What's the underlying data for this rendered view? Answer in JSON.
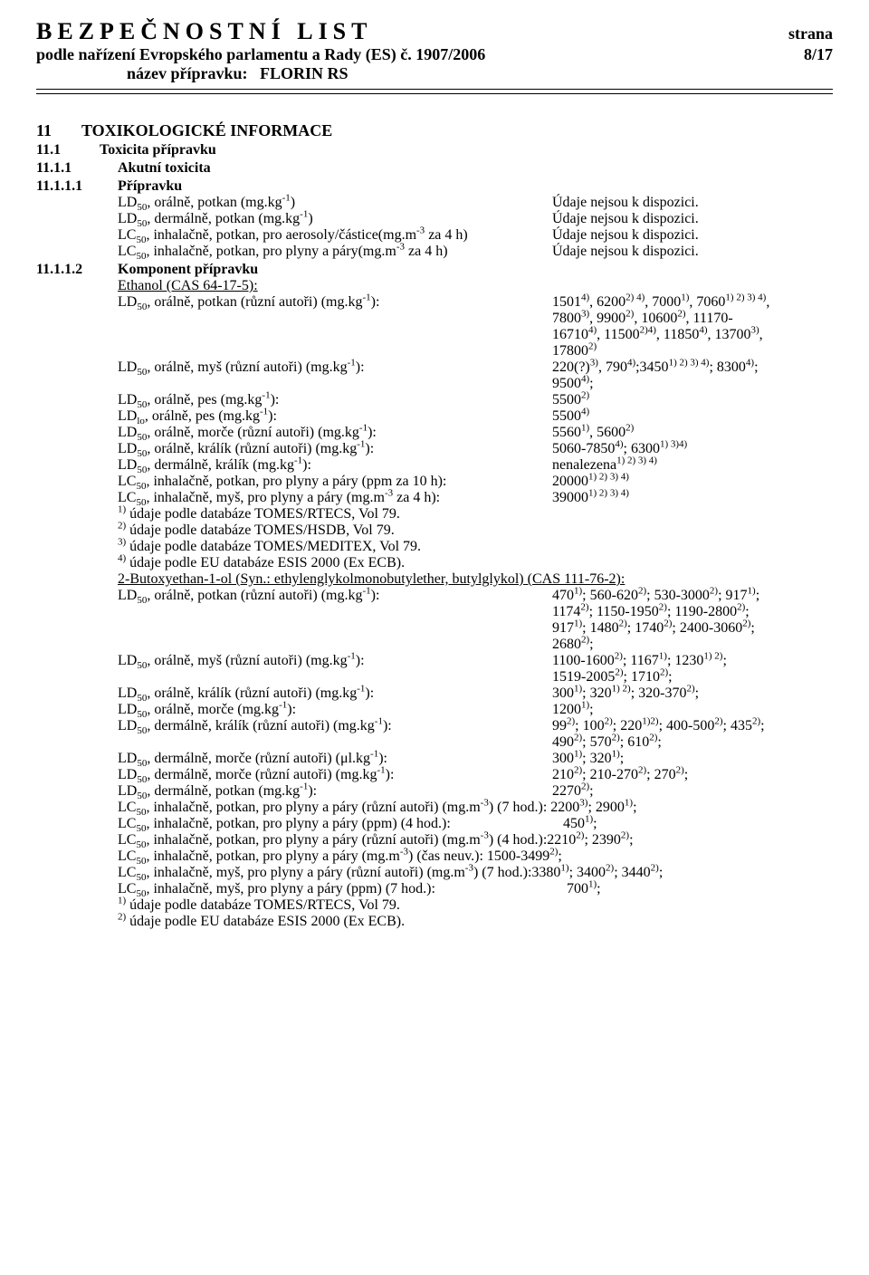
{
  "header": {
    "title": "BEZPEČNOSTNÍ LIST",
    "strana_label": "strana",
    "subtitle": "podle nařízení Evropského parlamentu a Rady (ES) č. 1907/2006",
    "page": "8/17",
    "prep_label": "název přípravku:",
    "prep_name": "FLORIN RS"
  },
  "s11": {
    "num": "11",
    "title": "TOXIKOLOGICKÉ INFORMACE"
  },
  "s11_1": {
    "num": "11.1",
    "title": "Toxicita přípravku"
  },
  "s11_1_1": {
    "num": "11.1.1",
    "title": "Akutní toxicita"
  },
  "s11_1_1_1": {
    "num": "11.1.1.1",
    "title": "Přípravku"
  },
  "prep": {
    "l1k": "LD",
    "l1k2": ", orálně, potkan (mg.kg",
    "l1v": "Údaje nejsou k dispozici.",
    "l2k": "LD",
    "l2k2": ", dermálně, potkan (mg.kg",
    "l2v": "Údaje nejsou k dispozici.",
    "l3k": "LC",
    "l3k2": ", inhalačně, potkan, pro aerosoly/částice(mg.m",
    "l3k3": " za 4 h)",
    "l3v": "Údaje nejsou k dispozici.",
    "l4k": "LC",
    "l4k2": ", inhalačně, potkan, pro plyny a páry(mg.m",
    "l4k3": " za 4 h)",
    "l4v": "Údaje nejsou k dispozici."
  },
  "s11_1_1_2": {
    "num": "11.1.1.2",
    "title": "Komponent přípravku"
  },
  "eth": {
    "heading": "Ethanol (CAS 64-17-5):",
    "l1a": ", orálně, potkan (různí autoři) (mg.kg",
    "l1v1": "1501",
    "l1v2": ", 6200",
    "l1v3": ", 7000",
    "l1v4": ", 7060",
    "l1v5": ",",
    "l1_line2a": "7800",
    "l1_line2b": ", 9900",
    "l1_line2c": ", 10600",
    "l1_line2d": ", 11170-",
    "l1_line3a": "16710",
    "l1_line3b": ", 11500",
    "l1_line3c": ", 11850",
    "l1_line3d": ", 13700",
    "l1_line3e": ",",
    "l1_line4": "17800",
    "l2a": ", orálně, myš (různí autoři) (mg.kg",
    "l2v1": "220(?)",
    "l2v2": ", 790",
    "l2v3": ";3450",
    "l2v4": "; 8300",
    "l2v5": ";",
    "l2_line2": "9500",
    "l3a": ", orálně, pes (mg.kg",
    "l3v": "5500",
    "l4a": ", orálně, pes (mg.kg",
    "l4v": "5500",
    "l5a": ", orálně, morče (různí autoři) (mg.kg",
    "l5v1": "5560",
    "l5v2": ", 5600",
    "l6a": ", orálně, králík (různí autoři) (mg.kg",
    "l6v1": "5060-7850",
    "l6v2": "; 6300",
    "l7a": ", dermálně, králík (mg.kg",
    "l7v": "nenalezena",
    "l8a": ", inhalačně, potkan, pro plyny a páry (ppm za 10 h):",
    "l8v": "20000",
    "l9a": ", inhalačně, myš, pro plyny a páry (mg.m",
    "l9b": " za 4 h):",
    "l9v": "39000",
    "note1": " údaje podle databáze TOMES/RTECS, Vol 79.",
    "note2": " údaje podle databáze TOMES/HSDB, Vol 79.",
    "note3": " údaje podle databáze TOMES/MEDITEX, Vol 79.",
    "note4": " údaje podle EU databáze ESIS 2000 (Ex ECB)."
  },
  "but": {
    "heading": "2-Butoxyethan-1-ol (Syn.: ethylenglykolmonobutylether, butylglykol) (CAS 111-76-2):",
    "l1a": ", orálně, potkan (různí autoři) (mg.kg",
    "l1v1": "470",
    "l1v2": "; 560-620",
    "l1v3": "; 530-3000",
    "l1v4": "; 917",
    "l1v5": ";",
    "l1_2a": "1174",
    "l1_2b": "; 1150-1950",
    "l1_2c": "; 1190-2800",
    "l1_2d": ";",
    "l1_3a": "917",
    "l1_3b": "; 1480",
    "l1_3c": "; 1740",
    "l1_3d": "; 2400-3060",
    "l1_3e": ";",
    "l1_4": "2680",
    "l2a": ", orálně, myš (různí autoři) (mg.kg",
    "l2v1": "1100-1600",
    "l2v2": "; 1167",
    "l2v3": "; 1230",
    "l2v4": ";",
    "l2_2a": "1519-2005",
    "l2_2b": "; 1710",
    "l3a": ", orálně, králík (různí autoři) (mg.kg",
    "l3v1": "300",
    "l3v2": "; 320",
    "l3v3": "; 320-370",
    "l4a": ", orálně, morče (mg.kg",
    "l4v": "1200",
    "l5a": ", dermálně, králík (různí autoři) (mg.kg",
    "l5v1": "99",
    "l5v2": "; 100",
    "l5v3": "; 220",
    "l5v4": "; 400-500",
    "l5v5": "; 435",
    "l5_2a": "490",
    "l5_2b": "; 570",
    "l5_2c": "; 610",
    "l6a": ", dermálně, morče (různí autoři) (μl.kg",
    "l6v1": "300",
    "l6v2": "; 320",
    "l7a": ", dermálně, morče (různí autoři) (mg.kg",
    "l7v1": "210",
    "l7v2": "; 210-270",
    "l7v3": "; 270",
    "l8a": ", dermálně, potkan (mg.kg",
    "l8v": "2270",
    "l9a": ", inhalačně, potkan, pro plyny a páry (různí autoři) (mg.m",
    "l9b": ") (7 hod.): 2200",
    "l9c": "; 2900",
    "l10a": ", inhalačně, potkan, pro plyny a páry (ppm) (4 hod.):",
    "l10v": "450",
    "l11a": ", inhalačně, potkan, pro plyny a páry (různí autoři) (mg.m",
    "l11b": ") (4 hod.):2210",
    "l11c": "; 2390",
    "l12a": ", inhalačně, potkan, pro plyny a páry (mg.m",
    "l12b": ") (čas neuv.): 1500-3499",
    "l13a": ", inhalačně, myš, pro plyny a páry (různí autoři) (mg.m",
    "l13b": ") (7 hod.):3380",
    "l13c": "; 3400",
    "l13d": "; 3440",
    "l14a": ", inhalačně, myš, pro plyny a páry (ppm) (7 hod.):",
    "l14v": "700",
    "note1": " údaje podle databáze TOMES/RTECS, Vol 79.",
    "note2": " údaje podle EU databáze ESIS 2000 (Ex ECB)."
  }
}
